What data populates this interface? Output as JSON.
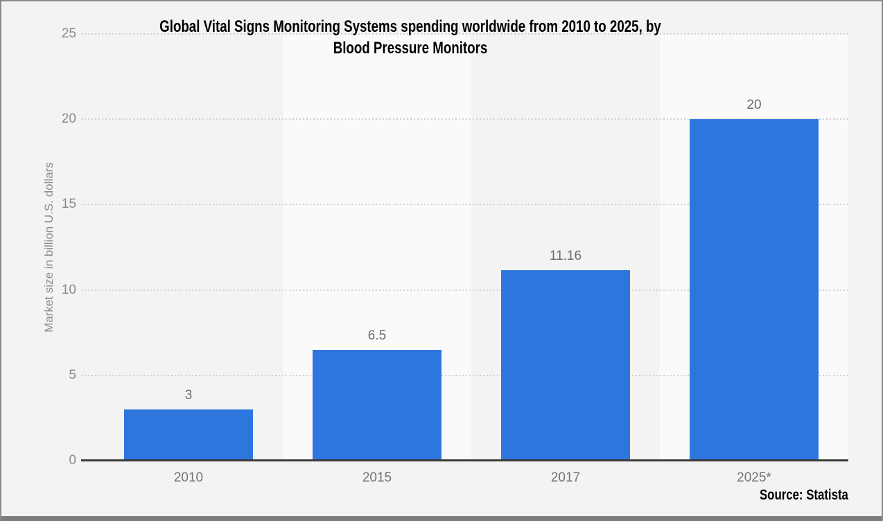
{
  "source": {
    "label": "Source: Statista"
  },
  "chart_data": {
    "type": "bar",
    "title": "Global Vital Signs Monitoring Systems spending worldwide from 2010 to 2025, by Blood Pressure Monitors",
    "title_lines": [
      "Global Vital Signs Monitoring Systems spending worldwide from 2010 to 2025, by",
      "Blood Pressure Monitors"
    ],
    "categories": [
      "2010",
      "2015",
      "2017",
      "2025*"
    ],
    "values": [
      3,
      6.5,
      11.16,
      20
    ],
    "value_labels": [
      "3",
      "6.5",
      "11.16",
      "20"
    ],
    "xlabel": "",
    "ylabel": "Market size in billion U.S. dollars",
    "ylim": [
      0,
      25
    ],
    "yticks": [
      0,
      5,
      10,
      15,
      20,
      25
    ],
    "grid": "horizontal-dotted",
    "legend": "none",
    "colors": {
      "bar": "#2d76dd",
      "background": "#f3f3f3",
      "column_band": "#fafafa",
      "gridline": "#cfcfcf",
      "axis_line": "#3a3a3a",
      "tick_text": "#8c8c8c",
      "label_text": "#737373",
      "title_text": "#000000"
    }
  }
}
